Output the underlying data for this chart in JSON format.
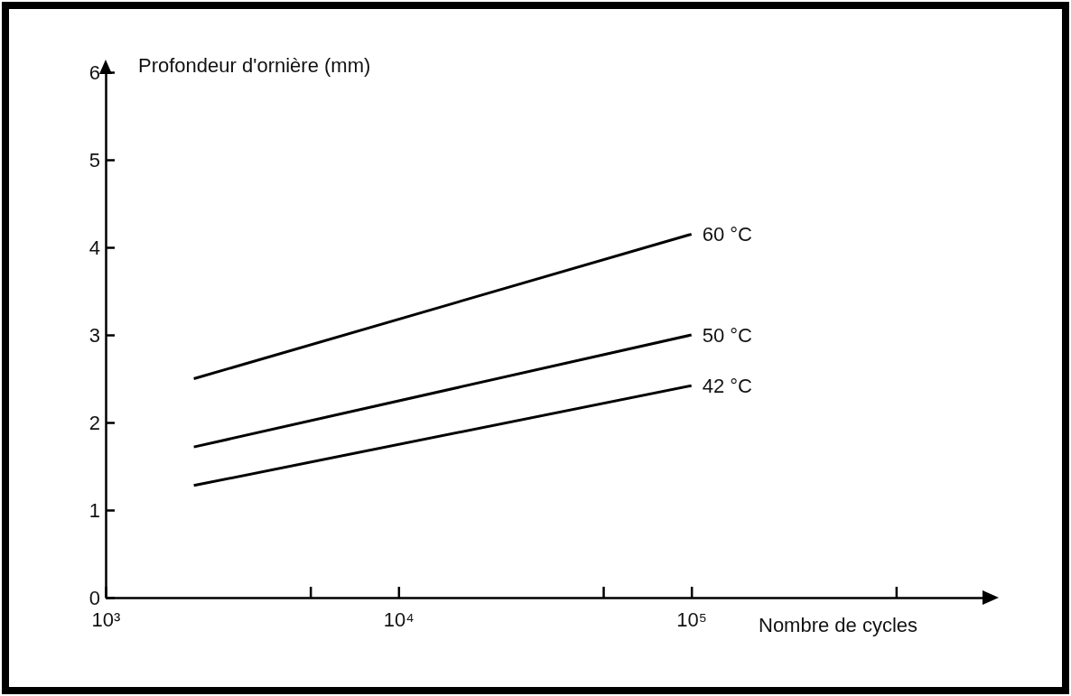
{
  "chart_data": {
    "type": "line",
    "xlabel": "Nombre de cycles",
    "ylabel": "Profondeur d'ornière (mm)",
    "log": "x",
    "xlim": [
      1000,
      1000000
    ],
    "xticks": [
      {
        "value": 1000,
        "label": "10³"
      },
      {
        "value": 5000,
        "label": null
      },
      {
        "value": 10000,
        "label": "10⁴"
      },
      {
        "value": 50000,
        "label": null
      },
      {
        "value": 100000,
        "label": "10⁵"
      },
      {
        "value": 500000,
        "label": null
      }
    ],
    "ylim": [
      0,
      6
    ],
    "yticks": [
      0,
      1,
      2,
      3,
      4,
      5,
      6
    ],
    "grid": false,
    "legend": false,
    "marker": "none",
    "line_style": "solid",
    "x": [
      2000,
      100000
    ],
    "series": [
      {
        "name": "60 °C",
        "color": "#000000",
        "values": [
          2.5,
          4.15
        ]
      },
      {
        "name": "50 °C",
        "color": "#000000",
        "values": [
          1.72,
          3.0
        ]
      },
      {
        "name": "42 °C",
        "color": "#000000",
        "values": [
          1.28,
          2.42
        ]
      }
    ]
  }
}
